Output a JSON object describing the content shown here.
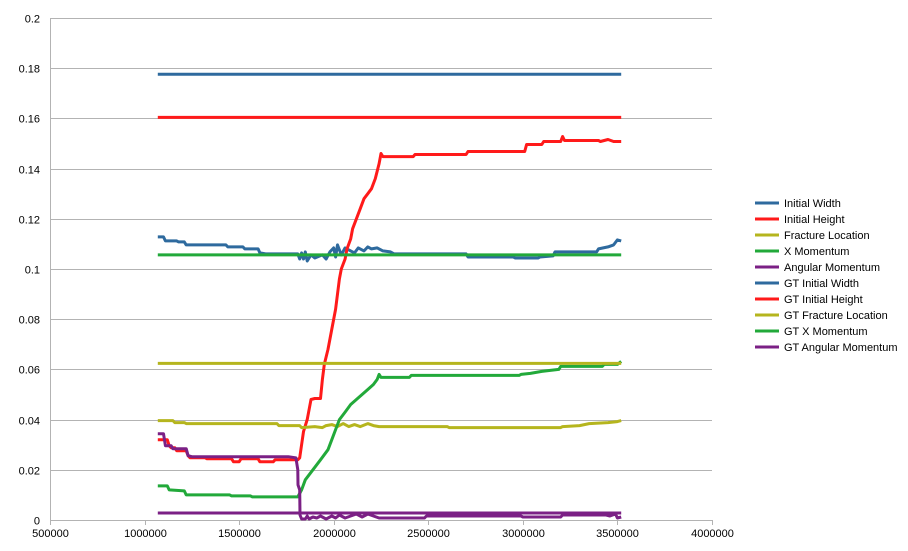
{
  "chart_data": {
    "type": "line",
    "title": "",
    "xlabel": "",
    "ylabel": "",
    "xlim": [
      500000,
      4000000
    ],
    "ylim": [
      0,
      0.2
    ],
    "x_ticks": [
      500000,
      1000000,
      1500000,
      2000000,
      2500000,
      3000000,
      3500000,
      4000000
    ],
    "y_ticks": [
      0,
      0.02,
      0.04,
      0.06,
      0.08,
      0.1,
      0.12,
      0.14,
      0.16,
      0.18,
      0.2
    ],
    "x_tick_labels": [
      "500000",
      "1000000",
      "1500000",
      "2000000",
      "2500000",
      "3000000",
      "3500000",
      "4000000"
    ],
    "y_tick_labels": [
      "0",
      "0.02",
      "0.04",
      "0.06",
      "0.08",
      "0.1",
      "0.12",
      "0.14",
      "0.16",
      "0.18",
      "0.2"
    ],
    "grid": "horizontal",
    "legend_position": "right",
    "series": [
      {
        "name": "Initial Width",
        "color": "#2e6a9e",
        "points": [
          [
            1070000,
            0.1128
          ],
          [
            1100000,
            0.1128
          ],
          [
            1110000,
            0.1112
          ],
          [
            1170000,
            0.1112
          ],
          [
            1180000,
            0.1108
          ],
          [
            1210000,
            0.1108
          ],
          [
            1220000,
            0.1096
          ],
          [
            1430000,
            0.1096
          ],
          [
            1440000,
            0.1088
          ],
          [
            1520000,
            0.1088
          ],
          [
            1530000,
            0.108
          ],
          [
            1600000,
            0.108
          ],
          [
            1610000,
            0.1064
          ],
          [
            1640000,
            0.106
          ],
          [
            1810000,
            0.106
          ],
          [
            1820000,
            0.104
          ],
          [
            1830000,
            0.1064
          ],
          [
            1840000,
            0.104
          ],
          [
            1850000,
            0.1068
          ],
          [
            1860000,
            0.1032
          ],
          [
            1880000,
            0.1056
          ],
          [
            1900000,
            0.1044
          ],
          [
            1940000,
            0.1056
          ],
          [
            1960000,
            0.104
          ],
          [
            1980000,
            0.1068
          ],
          [
            2000000,
            0.1084
          ],
          [
            2010000,
            0.1048
          ],
          [
            2020000,
            0.1096
          ],
          [
            2040000,
            0.1056
          ],
          [
            2060000,
            0.1084
          ],
          [
            2090000,
            0.1072
          ],
          [
            2110000,
            0.1064
          ],
          [
            2130000,
            0.1084
          ],
          [
            2160000,
            0.1072
          ],
          [
            2180000,
            0.1088
          ],
          [
            2200000,
            0.108
          ],
          [
            2230000,
            0.1084
          ],
          [
            2260000,
            0.1072
          ],
          [
            2300000,
            0.1068
          ],
          [
            2320000,
            0.106
          ],
          [
            2700000,
            0.106
          ],
          [
            2710000,
            0.1048
          ],
          [
            2950000,
            0.1048
          ],
          [
            2960000,
            0.1044
          ],
          [
            3080000,
            0.1044
          ],
          [
            3090000,
            0.1048
          ],
          [
            3160000,
            0.1052
          ],
          [
            3170000,
            0.1068
          ],
          [
            3390000,
            0.1068
          ],
          [
            3400000,
            0.108
          ],
          [
            3450000,
            0.1088
          ],
          [
            3480000,
            0.1096
          ],
          [
            3500000,
            0.1116
          ],
          [
            3520000,
            0.1112
          ]
        ]
      },
      {
        "name": "Initial Height",
        "color": "#ff1a1a",
        "points": [
          [
            1070000,
            0.032
          ],
          [
            1120000,
            0.032
          ],
          [
            1130000,
            0.0296
          ],
          [
            1140000,
            0.0288
          ],
          [
            1160000,
            0.0288
          ],
          [
            1170000,
            0.0276
          ],
          [
            1220000,
            0.0276
          ],
          [
            1230000,
            0.0256
          ],
          [
            1240000,
            0.0248
          ],
          [
            1320000,
            0.0248
          ],
          [
            1330000,
            0.0244
          ],
          [
            1460000,
            0.0244
          ],
          [
            1470000,
            0.0232
          ],
          [
            1500000,
            0.0232
          ],
          [
            1510000,
            0.0244
          ],
          [
            1600000,
            0.0244
          ],
          [
            1610000,
            0.0232
          ],
          [
            1680000,
            0.0232
          ],
          [
            1690000,
            0.024
          ],
          [
            1810000,
            0.024
          ],
          [
            1820000,
            0.0248
          ],
          [
            1830000,
            0.03
          ],
          [
            1840000,
            0.0352
          ],
          [
            1860000,
            0.04
          ],
          [
            1880000,
            0.048
          ],
          [
            1900000,
            0.0484
          ],
          [
            1930000,
            0.0484
          ],
          [
            1940000,
            0.056
          ],
          [
            1950000,
            0.062
          ],
          [
            1970000,
            0.068
          ],
          [
            1990000,
            0.076
          ],
          [
            2000000,
            0.08
          ],
          [
            2010000,
            0.084
          ],
          [
            2030000,
            0.096
          ],
          [
            2040000,
            0.1
          ],
          [
            2060000,
            0.104
          ],
          [
            2070000,
            0.108
          ],
          [
            2090000,
            0.112
          ],
          [
            2100000,
            0.116
          ],
          [
            2120000,
            0.12
          ],
          [
            2140000,
            0.124
          ],
          [
            2160000,
            0.128
          ],
          [
            2180000,
            0.13
          ],
          [
            2200000,
            0.132
          ],
          [
            2220000,
            0.136
          ],
          [
            2240000,
            0.142
          ],
          [
            2250000,
            0.146
          ],
          [
            2260000,
            0.1448
          ],
          [
            2420000,
            0.1448
          ],
          [
            2430000,
            0.1456
          ],
          [
            2700000,
            0.1456
          ],
          [
            2710000,
            0.1468
          ],
          [
            3010000,
            0.1468
          ],
          [
            3020000,
            0.1496
          ],
          [
            3100000,
            0.1496
          ],
          [
            3110000,
            0.1508
          ],
          [
            3200000,
            0.1508
          ],
          [
            3210000,
            0.1528
          ],
          [
            3220000,
            0.1512
          ],
          [
            3400000,
            0.1512
          ],
          [
            3410000,
            0.1508
          ],
          [
            3450000,
            0.1516
          ],
          [
            3480000,
            0.1508
          ],
          [
            3520000,
            0.1508
          ]
        ]
      },
      {
        "name": "Fracture Location",
        "color": "#b5b51e",
        "points": [
          [
            1070000,
            0.0396
          ],
          [
            1150000,
            0.0396
          ],
          [
            1160000,
            0.0388
          ],
          [
            1210000,
            0.0388
          ],
          [
            1220000,
            0.0384
          ],
          [
            1700000,
            0.0384
          ],
          [
            1710000,
            0.0376
          ],
          [
            1820000,
            0.0376
          ],
          [
            1830000,
            0.0368
          ],
          [
            1900000,
            0.0372
          ],
          [
            1940000,
            0.0368
          ],
          [
            1960000,
            0.0376
          ],
          [
            1990000,
            0.038
          ],
          [
            2020000,
            0.0372
          ],
          [
            2050000,
            0.0384
          ],
          [
            2080000,
            0.0372
          ],
          [
            2110000,
            0.038
          ],
          [
            2140000,
            0.0372
          ],
          [
            2180000,
            0.0384
          ],
          [
            2210000,
            0.0376
          ],
          [
            2240000,
            0.0372
          ],
          [
            2600000,
            0.0372
          ],
          [
            2610000,
            0.0368
          ],
          [
            3200000,
            0.0368
          ],
          [
            3210000,
            0.0372
          ],
          [
            3300000,
            0.0376
          ],
          [
            3350000,
            0.0384
          ],
          [
            3450000,
            0.0388
          ],
          [
            3500000,
            0.0392
          ],
          [
            3520000,
            0.0396
          ]
        ]
      },
      {
        "name": "X Momentum",
        "color": "#22a93a",
        "points": [
          [
            1070000,
            0.0136
          ],
          [
            1120000,
            0.0136
          ],
          [
            1130000,
            0.012
          ],
          [
            1210000,
            0.0116
          ],
          [
            1220000,
            0.01
          ],
          [
            1450000,
            0.01
          ],
          [
            1460000,
            0.0096
          ],
          [
            1560000,
            0.0096
          ],
          [
            1570000,
            0.0092
          ],
          [
            1810000,
            0.0092
          ],
          [
            1830000,
            0.012
          ],
          [
            1850000,
            0.016
          ],
          [
            1870000,
            0.018
          ],
          [
            1890000,
            0.02
          ],
          [
            1910000,
            0.022
          ],
          [
            1930000,
            0.024
          ],
          [
            1950000,
            0.026
          ],
          [
            1970000,
            0.028
          ],
          [
            1980000,
            0.03
          ],
          [
            1990000,
            0.032
          ],
          [
            2010000,
            0.036
          ],
          [
            2030000,
            0.04
          ],
          [
            2060000,
            0.043
          ],
          [
            2090000,
            0.046
          ],
          [
            2120000,
            0.048
          ],
          [
            2150000,
            0.05
          ],
          [
            2180000,
            0.052
          ],
          [
            2210000,
            0.054
          ],
          [
            2230000,
            0.056
          ],
          [
            2240000,
            0.058
          ],
          [
            2250000,
            0.0568
          ],
          [
            2400000,
            0.0568
          ],
          [
            2410000,
            0.0576
          ],
          [
            2980000,
            0.0576
          ],
          [
            2990000,
            0.058
          ],
          [
            3040000,
            0.0584
          ],
          [
            3100000,
            0.0592
          ],
          [
            3190000,
            0.06
          ],
          [
            3200000,
            0.0612
          ],
          [
            3420000,
            0.0612
          ],
          [
            3430000,
            0.062
          ],
          [
            3500000,
            0.062
          ],
          [
            3520000,
            0.0632
          ]
        ]
      },
      {
        "name": "Angular Momentum",
        "color": "#7b2085",
        "points": [
          [
            1070000,
            0.0344
          ],
          [
            1100000,
            0.0344
          ],
          [
            1110000,
            0.0296
          ],
          [
            1140000,
            0.0296
          ],
          [
            1150000,
            0.0284
          ],
          [
            1220000,
            0.0284
          ],
          [
            1230000,
            0.0256
          ],
          [
            1250000,
            0.0252
          ],
          [
            1760000,
            0.0252
          ],
          [
            1800000,
            0.0248
          ],
          [
            1810000,
            0.02
          ],
          [
            1811000,
            0.014
          ],
          [
            1820000,
            0.012
          ],
          [
            1822000,
            0.002
          ],
          [
            1830000,
            0.0004
          ],
          [
            1850000,
            0.0004
          ],
          [
            1860000,
            0.0016
          ],
          [
            1870000,
            0.0004
          ],
          [
            1890000,
            0.0012
          ],
          [
            1910000,
            0.0008
          ],
          [
            1930000,
            0.0016
          ],
          [
            1960000,
            0.0004
          ],
          [
            1990000,
            0.0016
          ],
          [
            2010000,
            0.0008
          ],
          [
            2030000,
            0.002
          ],
          [
            2060000,
            0.0008
          ],
          [
            2090000,
            0.0016
          ],
          [
            2120000,
            0.0024
          ],
          [
            2150000,
            0.0012
          ],
          [
            2180000,
            0.0024
          ],
          [
            2210000,
            0.0016
          ],
          [
            2240000,
            0.0008
          ],
          [
            2480000,
            0.0008
          ],
          [
            2490000,
            0.0016
          ],
          [
            2990000,
            0.0016
          ],
          [
            3000000,
            0.0012
          ],
          [
            3200000,
            0.0012
          ],
          [
            3210000,
            0.002
          ],
          [
            3440000,
            0.002
          ],
          [
            3460000,
            0.0016
          ],
          [
            3490000,
            0.0024
          ],
          [
            3500000,
            0.0008
          ],
          [
            3520000,
            0.0012
          ]
        ]
      },
      {
        "name": "GT Initial Width",
        "color": "#2e6a9e",
        "points": [
          [
            1070000,
            0.1776
          ],
          [
            3520000,
            0.1776
          ]
        ]
      },
      {
        "name": "GT Initial Height",
        "color": "#ff1a1a",
        "points": [
          [
            1070000,
            0.1604
          ],
          [
            3520000,
            0.1604
          ]
        ]
      },
      {
        "name": "GT Fracture Location",
        "color": "#b5b51e",
        "points": [
          [
            1070000,
            0.0624
          ],
          [
            3520000,
            0.0624
          ]
        ]
      },
      {
        "name": "GT X Momentum",
        "color": "#22a93a",
        "points": [
          [
            1070000,
            0.1056
          ],
          [
            3520000,
            0.1056
          ]
        ]
      },
      {
        "name": "GT Angular Momentum",
        "color": "#7b2085",
        "points": [
          [
            1070000,
            0.0028
          ],
          [
            3520000,
            0.0028
          ]
        ]
      }
    ]
  }
}
